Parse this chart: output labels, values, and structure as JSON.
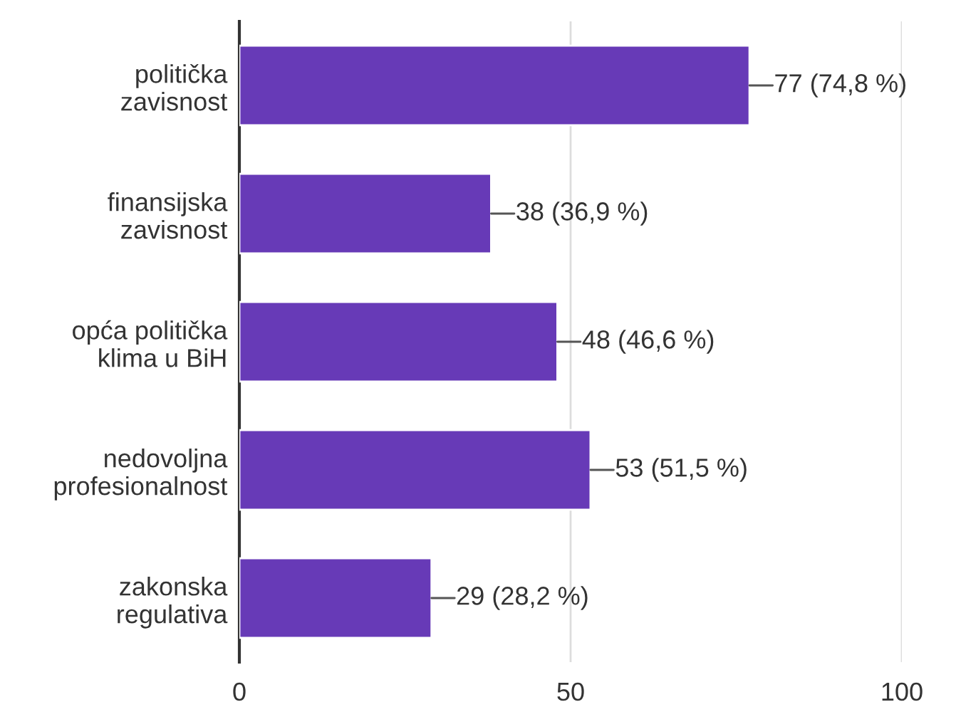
{
  "chart_data": {
    "type": "bar",
    "orientation": "horizontal",
    "categories": [
      "politička\nzavisnost",
      "finansijska\nzavisnost",
      "opća politička\nklima u BiH",
      "nedovoljna\nprofesionalnost",
      "zakonska\nregulativa"
    ],
    "values": [
      77,
      38,
      48,
      53,
      29
    ],
    "value_labels": [
      "77 (74,8 %)",
      "38 (36,9 %)",
      "48 (46,6 %)",
      "53 (51,5 %)",
      "29 (28,2 %)"
    ],
    "color": "#673ab7",
    "xlim": [
      0,
      100
    ],
    "xticks": [
      0,
      50,
      100
    ],
    "grid": "x"
  }
}
